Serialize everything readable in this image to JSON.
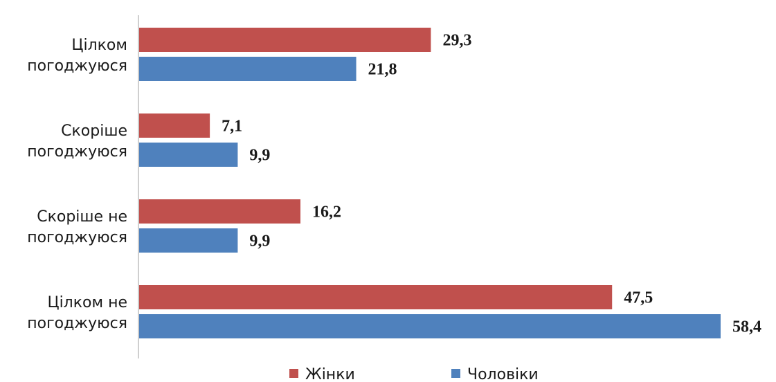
{
  "chart_data": {
    "type": "bar",
    "orientation": "horizontal",
    "categories": [
      [
        "Цілком",
        "погоджуюся"
      ],
      [
        "Скоріше",
        "погоджуюся"
      ],
      [
        "Скоріше не",
        "погоджуюся"
      ],
      [
        "Цілком не",
        "погоджуюся"
      ]
    ],
    "series": [
      {
        "name": "Жінки",
        "values": [
          29.3,
          7.1,
          16.2,
          47.5
        ],
        "labels": [
          "29,3",
          "7,1",
          "16,2",
          "47,5"
        ],
        "color": "#c0504d"
      },
      {
        "name": "Чоловіки",
        "values": [
          21.8,
          9.9,
          9.9,
          58.4
        ],
        "labels": [
          "21,8",
          "9,9",
          "9,9",
          "58,4"
        ],
        "color": "#4f81bd"
      }
    ],
    "xlim": [
      0,
      58.4
    ],
    "grid": false,
    "legend_position": "bottom"
  }
}
